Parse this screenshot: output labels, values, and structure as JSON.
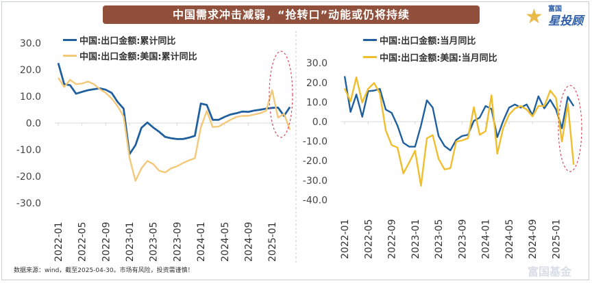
{
  "title": "中国需求冲击减弱，“抢转口”动能或仍将持续",
  "logo": {
    "line1": "富国",
    "line2": "星投顾"
  },
  "watermark": "富国基金",
  "footer": "数据来源：wind，截至2025-04-30。市场有风险，投资需谨慎！",
  "colors": {
    "blue": "#1f5f9e",
    "orange_light": "#f3c878",
    "orange": "#f0bd2c",
    "title_bg": "#91503c",
    "highlight": "#d9485a"
  },
  "chart_data": [
    {
      "type": "line",
      "title": "",
      "xlabel": "",
      "ylabel": "",
      "ylim": [
        -30,
        30
      ],
      "yticks": [
        "30.0",
        "20.0",
        "10.0",
        "0.0",
        "-10.0",
        "-20.0",
        "-30.0"
      ],
      "xticks": [
        "2022-01",
        "2022-05",
        "2022-09",
        "2023-01",
        "2023-05",
        "2023-09",
        "2024-01",
        "2024-05",
        "2024-09",
        "2025-01"
      ],
      "x_start": "2022-01",
      "x_end": "2025-04",
      "legend_position": "top-left",
      "series": [
        {
          "name": "中国:出口金额:累计同比",
          "color": "#1f5f9e",
          "values": [
            22.5,
            14.6,
            14.2,
            11,
            11.7,
            12.3,
            12.7,
            13,
            12.5,
            11.3,
            7.9,
            5.4,
            -11.7,
            -8.3,
            -1.8,
            0.2,
            -1.7,
            -3.3,
            -5.2,
            -5.7,
            -6,
            -6,
            -5.5,
            -4.8,
            7.3,
            6.8,
            1.2,
            1.2,
            2.3,
            3.2,
            3.7,
            4.3,
            4.2,
            4.7,
            5,
            5.4,
            5.7,
            5.8,
            2.7,
            6
          ]
        },
        {
          "name": "中国:出口金额:美国:累计同比",
          "color": "#f3c878",
          "values": [
            17,
            13.5,
            16.2,
            14.6,
            14.8,
            15.6,
            14.6,
            12.7,
            11.3,
            9.2,
            6.3,
            2.5,
            -13,
            -21.7,
            -17,
            -14.2,
            -15.4,
            -17.9,
            -18.5,
            -17,
            -16.2,
            -15,
            -14,
            -13.2,
            -1.7,
            4.6,
            -1.5,
            -1.3,
            0,
            1.2,
            2.3,
            2.7,
            2.7,
            3.2,
            3.7,
            4.6,
            12.3,
            2,
            3.5,
            -2.5
          ]
        }
      ]
    },
    {
      "type": "line",
      "title": "",
      "xlabel": "",
      "ylabel": "",
      "ylim": [
        -40,
        30
      ],
      "yticks": [
        "30.0",
        "20.0",
        "10.0",
        "0.0",
        "-10.0",
        "-20.0",
        "-30.0",
        "-40.0"
      ],
      "xticks": [
        "2022-01",
        "2022-05",
        "2022-09",
        "2023-01",
        "2023-05",
        "2023-09",
        "2024-01",
        "2024-05",
        "2024-09",
        "2025-01"
      ],
      "x_start": "2022-01",
      "x_end": "2025-04",
      "legend_position": "top-right",
      "series": [
        {
          "name": "中国:出口金额:当月同比",
          "color": "#1f5f9e",
          "values": [
            23.3,
            5,
            13.9,
            2.5,
            15.6,
            15.9,
            16.8,
            6.2,
            4.5,
            -2,
            -10.8,
            -12.8,
            -12.8,
            -2,
            10.9,
            7.2,
            -7.3,
            -12.4,
            -14.7,
            -9.3,
            -7.3,
            -6.7,
            0.4,
            2.1,
            8,
            6.5,
            -7.9,
            0.4,
            7.2,
            8.8,
            7.2,
            8.8,
            3.3,
            13,
            6.8,
            11.2,
            6.2,
            -3.4,
            12.7,
            8
          ]
        },
        {
          "name": "中国:出口金额:美国:当月同比",
          "color": "#f0bd2c",
          "values": [
            17,
            10.4,
            22.7,
            9.8,
            16.8,
            19.8,
            14.5,
            -4.4,
            -12,
            -13.2,
            -26.5,
            -20.8,
            -14.9,
            -32.8,
            -8.5,
            -6.9,
            -19,
            -24.4,
            -23.8,
            -10.2,
            -9.6,
            -8.5,
            7.4,
            -6.7,
            -4.9,
            13.5,
            -16.4,
            -3.2,
            3.6,
            6.8,
            8,
            6.2,
            2.7,
            8,
            8,
            15.9,
            12.1,
            -10.2,
            9.2,
            -22
          ]
        }
      ]
    }
  ]
}
